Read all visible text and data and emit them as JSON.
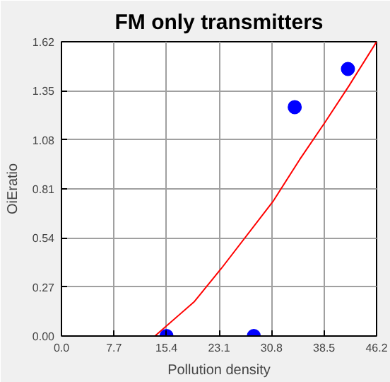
{
  "chart_data": {
    "type": "scatter",
    "title": "FM only transmitters",
    "xlabel": "Pollution density",
    "ylabel": "OiEratio",
    "xlim": [
      0,
      46.2
    ],
    "ylim": [
      0,
      1.62
    ],
    "xticks": [
      {
        "value": 0,
        "label": "0.0"
      },
      7.7,
      15.4,
      23.1,
      30.8,
      38.5,
      46.2
    ],
    "yticks": [
      {
        "value": 0,
        "label": "0.00"
      },
      0.27,
      0.54,
      0.81,
      {
        "value": 1.08,
        "label": "1.08"
      },
      1.35,
      1.62
    ],
    "grid": true,
    "marker": "circle",
    "series": [
      {
        "color": "#0000ff",
        "x": [
          15.4,
          28.2,
          34.2,
          42.0
        ],
        "values": [
          0,
          0,
          1.26,
          1.47
        ]
      },
      {
        "type": "line",
        "color": "#ff0000",
        "marker": "none",
        "x": [
          13.7,
          19.5,
          23.4,
          31.0,
          34.9,
          38.7,
          42.2,
          46.2
        ],
        "values": [
          0,
          0.19,
          0.37,
          0.74,
          0.97,
          1.18,
          1.38,
          1.62
        ]
      }
    ]
  }
}
